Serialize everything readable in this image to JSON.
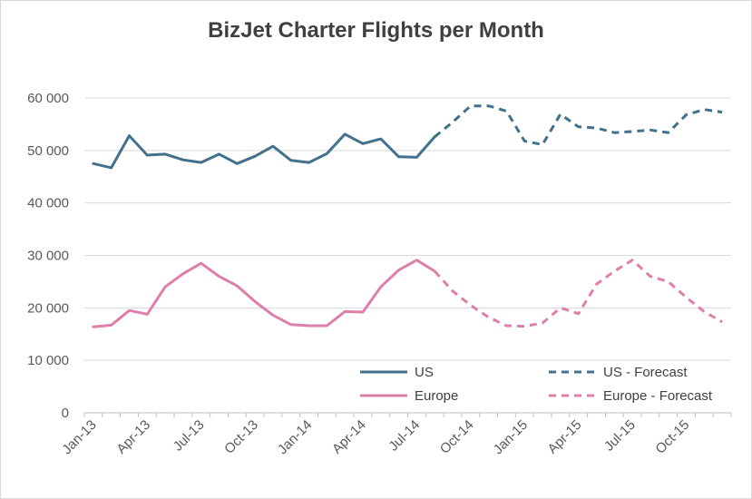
{
  "chart_data": {
    "type": "line",
    "title": "BizJet Charter Flights per Month",
    "xlabel": "",
    "ylabel": "",
    "ylim": [
      0,
      60000
    ],
    "yticks": [
      0,
      10000,
      20000,
      30000,
      40000,
      50000,
      60000
    ],
    "ytick_labels": [
      "0",
      "10 000",
      "20 000",
      "30 000",
      "40 000",
      "50 000",
      "60 000"
    ],
    "x": [
      "Jan-13",
      "Feb-13",
      "Mar-13",
      "Apr-13",
      "May-13",
      "Jun-13",
      "Jul-13",
      "Aug-13",
      "Sep-13",
      "Oct-13",
      "Nov-13",
      "Dec-13",
      "Jan-14",
      "Feb-14",
      "Mar-14",
      "Apr-14",
      "May-14",
      "Jun-14",
      "Jul-14",
      "Aug-14",
      "Sep-14",
      "Oct-14",
      "Nov-14",
      "Dec-14",
      "Jan-15",
      "Feb-15",
      "Mar-15",
      "Apr-15",
      "May-15",
      "Jun-15",
      "Jul-15",
      "Aug-15",
      "Sep-15",
      "Oct-15",
      "Nov-15",
      "Dec-15"
    ],
    "xtick_labels": [
      "Jan-13",
      "Apr-13",
      "Jul-13",
      "Oct-13",
      "Jan-14",
      "Apr-14",
      "Jul-14",
      "Oct-14",
      "Jan-15",
      "Apr-15",
      "Jul-15",
      "Oct-15"
    ],
    "grid": true,
    "legend_position": "bottom-right",
    "series": [
      {
        "name": "US",
        "color": "#41718c",
        "style": "solid",
        "x": [
          "Jan-13",
          "Feb-13",
          "Mar-13",
          "Apr-13",
          "May-13",
          "Jun-13",
          "Jul-13",
          "Aug-13",
          "Sep-13",
          "Oct-13",
          "Nov-13",
          "Dec-13",
          "Jan-14",
          "Feb-14",
          "Mar-14",
          "Apr-14",
          "May-14",
          "Jun-14",
          "Jul-14",
          "Aug-14"
        ],
        "values": [
          47500,
          46700,
          52800,
          49100,
          49300,
          48200,
          47700,
          49300,
          47500,
          48900,
          50800,
          48100,
          47700,
          49400,
          53100,
          51300,
          52200,
          48800,
          48700,
          52600
        ]
      },
      {
        "name": "US - Forecast",
        "color": "#41718c",
        "style": "dashed",
        "x": [
          "Aug-14",
          "Sep-14",
          "Oct-14",
          "Nov-14",
          "Dec-14",
          "Jan-15",
          "Feb-15",
          "Mar-15",
          "Apr-15",
          "May-15",
          "Jun-15",
          "Jul-15",
          "Aug-15",
          "Sep-15",
          "Oct-15",
          "Nov-15",
          "Dec-15"
        ],
        "values": [
          52600,
          55400,
          58500,
          58500,
          57500,
          51800,
          51100,
          56900,
          54500,
          54300,
          53400,
          53600,
          53900,
          53400,
          56800,
          57800,
          57300
        ]
      },
      {
        "name": "Europe",
        "color": "#de7fab",
        "style": "solid",
        "x": [
          "Jan-13",
          "Feb-13",
          "Mar-13",
          "Apr-13",
          "May-13",
          "Jun-13",
          "Jul-13",
          "Aug-13",
          "Sep-13",
          "Oct-13",
          "Nov-13",
          "Dec-13",
          "Jan-14",
          "Feb-14",
          "Mar-14",
          "Apr-14",
          "May-14",
          "Jun-14",
          "Jul-14",
          "Aug-14"
        ],
        "values": [
          16400,
          16700,
          19500,
          18800,
          24000,
          26500,
          28500,
          26000,
          24200,
          21200,
          18600,
          16800,
          16600,
          16600,
          19300,
          19200,
          24000,
          27200,
          29100,
          27000
        ]
      },
      {
        "name": "Europe - Forecast",
        "color": "#de7fab",
        "style": "dashed",
        "x": [
          "Aug-14",
          "Sep-14",
          "Oct-14",
          "Nov-14",
          "Dec-14",
          "Jan-15",
          "Feb-15",
          "Mar-15",
          "Apr-15",
          "May-15",
          "Jun-15",
          "Jul-15",
          "Aug-15",
          "Sep-15",
          "Oct-15",
          "Nov-15",
          "Dec-15"
        ],
        "values": [
          27000,
          23200,
          20500,
          18200,
          16600,
          16500,
          17100,
          20000,
          18900,
          24500,
          27000,
          29100,
          26000,
          25000,
          22000,
          19300,
          17300
        ]
      }
    ]
  }
}
